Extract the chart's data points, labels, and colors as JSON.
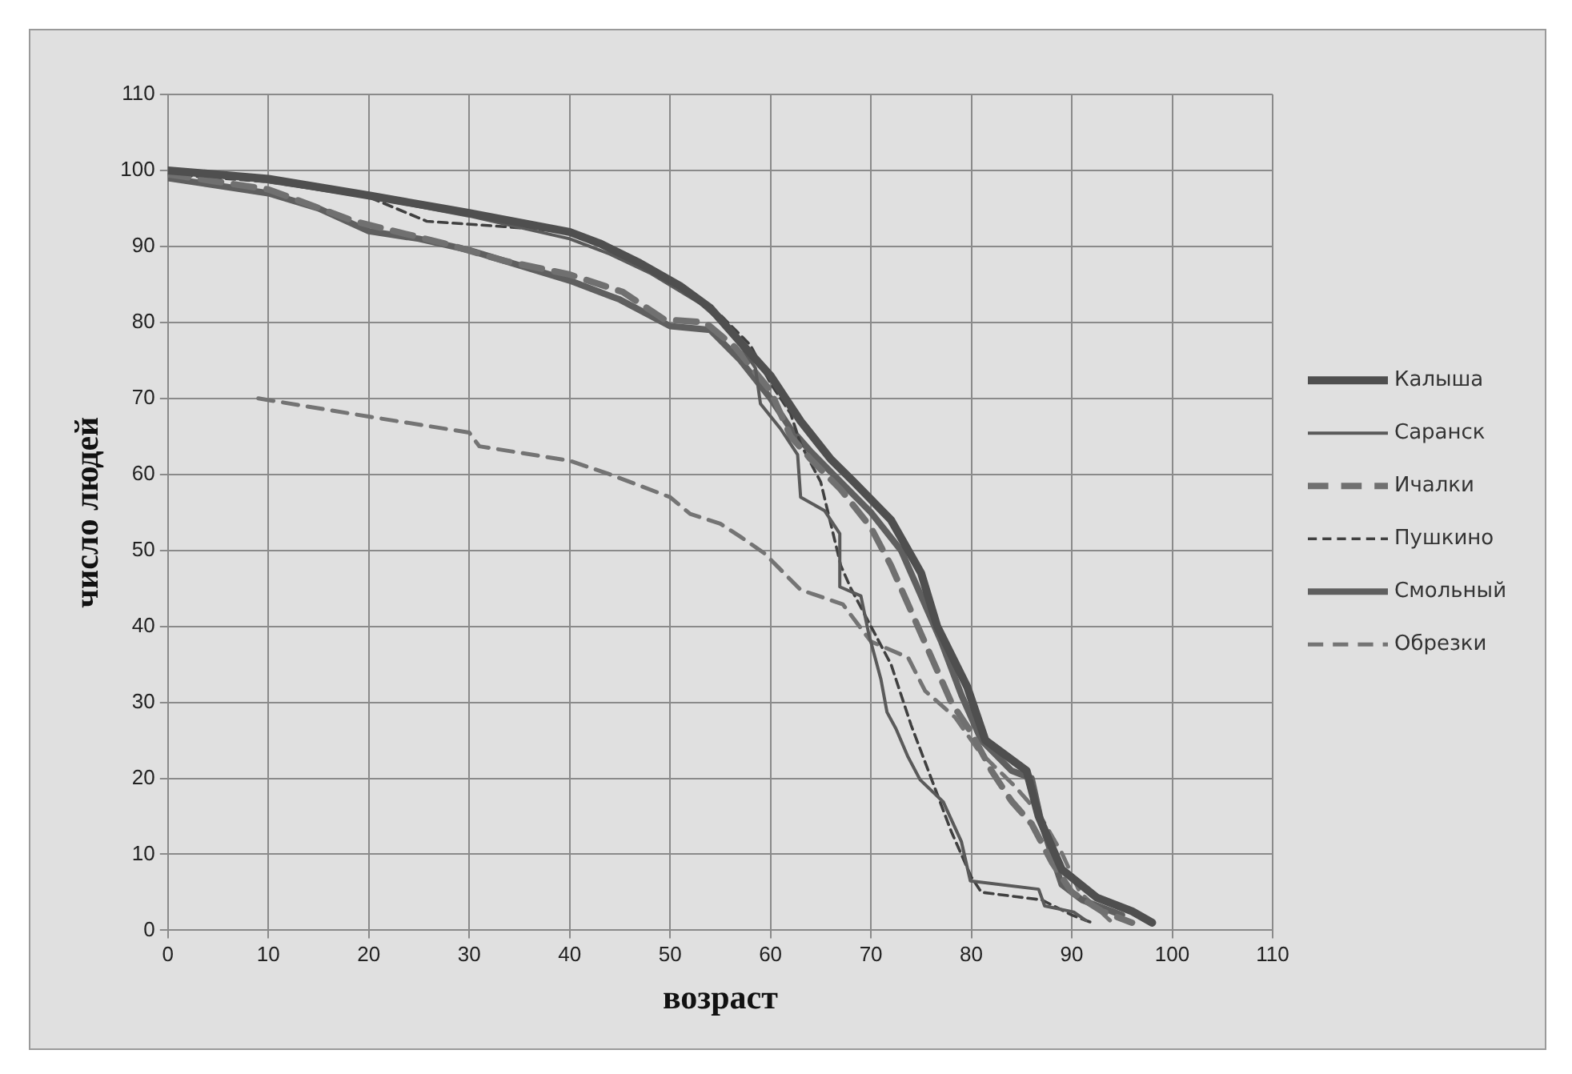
{
  "chart_data": {
    "type": "line",
    "xlabel": "возраст",
    "ylabel": "число людей",
    "xlim": [
      0,
      110
    ],
    "xticks": [
      0,
      10,
      20,
      30,
      40,
      50,
      60,
      70,
      80,
      90,
      100,
      110
    ],
    "ylim": [
      0,
      110
    ],
    "yticks": [
      0,
      10,
      20,
      30,
      40,
      50,
      60,
      70,
      80,
      90,
      100,
      110
    ],
    "grid": true,
    "legend": "right",
    "marker": "none",
    "series": [
      {
        "name": "Калыша",
        "color": "#4f4f4f",
        "line_style": "solid",
        "x": [
          0,
          10,
          20,
          30,
          40,
          43,
          47,
          51,
          54,
          57,
          60,
          63,
          66,
          68.3,
          72,
          75,
          76.6,
          79.6,
          81.4,
          85.5,
          86.7,
          89,
          92.5,
          96,
          98
        ],
        "values": [
          100,
          98.9,
          96.7,
          94.4,
          91.9,
          90.4,
          87.8,
          84.8,
          81.9,
          77.4,
          73,
          67,
          62,
          59,
          54,
          47,
          40,
          32,
          25,
          21,
          15,
          8,
          4.3,
          2.5,
          1
        ]
      },
      {
        "name": "Саранск",
        "color": "#5a5a5a",
        "line_style": "solid",
        "x": [
          0,
          10,
          20,
          30,
          40,
          44,
          48,
          53,
          56,
          58.5,
          59,
          61,
          62.7,
          63,
          65.4,
          66.9,
          66.9,
          69,
          69.8,
          71,
          71.6,
          72.5,
          73.7,
          74.9,
          77.2,
          79,
          79.9,
          86.7,
          87.3,
          90.2,
          91.4
        ],
        "values": [
          100,
          98.5,
          96.5,
          94,
          91,
          89,
          86.5,
          82.5,
          79,
          74,
          69.3,
          66,
          62.6,
          57,
          55.2,
          52.2,
          45.2,
          44,
          38.9,
          33,
          28.7,
          26.5,
          22.8,
          19.8,
          16.9,
          11.7,
          6.5,
          5.4,
          3.2,
          2.4,
          1.3
        ]
      },
      {
        "name": "Ичалки",
        "color": "#707070",
        "line_style": "dashed",
        "x": [
          0,
          10,
          18.6,
          27.5,
          33.5,
          40,
          45.3,
          49.4,
          53.5,
          56.5,
          60,
          62,
          64,
          67,
          70,
          72,
          74,
          76,
          78,
          80,
          82,
          84,
          86,
          88,
          90,
          93,
          96
        ],
        "values": [
          99.5,
          97.5,
          93.3,
          90.4,
          88.1,
          86.3,
          84,
          80.4,
          80,
          76.7,
          71,
          65,
          62,
          58,
          53,
          48,
          42,
          36,
          30,
          26,
          21,
          17,
          14,
          9,
          5,
          2.5,
          1
        ]
      },
      {
        "name": "Пушкино",
        "color": "#404040",
        "line_style": "dashed",
        "x": [
          0,
          10,
          20,
          25.8,
          33.5,
          40,
          45,
          50,
          55,
          58,
          60,
          62,
          63,
          65,
          67,
          68,
          70,
          72,
          74,
          76,
          78,
          80,
          81,
          87,
          90,
          92
        ],
        "values": [
          99.5,
          98.5,
          96.5,
          93.3,
          92.6,
          91.9,
          89,
          85.5,
          81,
          77,
          72,
          68,
          64,
          59,
          48,
          45,
          40,
          35,
          27,
          20,
          13,
          7,
          5,
          4,
          2,
          1
        ]
      },
      {
        "name": "Смольный",
        "color": "#5f5f5f",
        "line_style": "solid",
        "x": [
          0,
          10,
          15,
          20,
          25,
          30,
          35,
          40,
          45,
          50,
          54,
          57,
          60,
          62,
          64,
          67,
          70,
          73,
          75,
          77,
          79,
          81,
          84,
          86,
          87,
          89,
          91,
          95
        ],
        "values": [
          99,
          97,
          95,
          92,
          91,
          89.5,
          87.5,
          85.5,
          83,
          79.5,
          79,
          75,
          70,
          66,
          63,
          59,
          55,
          50,
          44,
          38,
          31,
          25,
          21,
          20,
          14,
          6,
          4,
          2
        ]
      },
      {
        "name": "Обрезки",
        "color": "#747474",
        "line_style": "dashed",
        "x": [
          9,
          20,
          30,
          31,
          40,
          44,
          50,
          52,
          55,
          57,
          59.4,
          63,
          67.2,
          70,
          73.7,
          75.4,
          78.4,
          80.8,
          84.3,
          86.7,
          89,
          90.8,
          93.8
        ],
        "values": [
          70,
          67.6,
          65.5,
          63.7,
          61.8,
          60,
          57,
          54.8,
          53.5,
          51.8,
          49.6,
          44.8,
          42.9,
          38,
          35.9,
          31.5,
          28,
          23.5,
          19,
          15.4,
          10.2,
          5,
          1.3
        ]
      }
    ]
  }
}
